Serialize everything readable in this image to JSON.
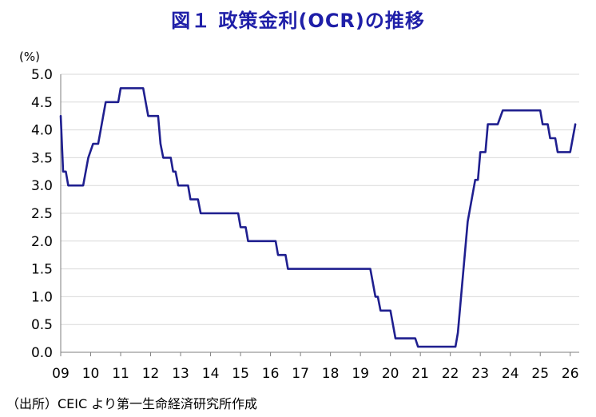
{
  "header": {
    "title": "図１ 政策金利(OCR)の推移"
  },
  "footer": {
    "source": "（出所）CEIC より第一生命経済研究所作成"
  },
  "chart_data": {
    "type": "line",
    "title": "図１ 政策金利(OCR)の推移",
    "xlabel": "",
    "ylabel": "(%)",
    "ylim": [
      0,
      5
    ],
    "xlim": [
      2009.0,
      2026.3
    ],
    "grid": true,
    "legend": "none",
    "y_ticks": [
      "0.0",
      "0.5",
      "1.0",
      "1.5",
      "2.0",
      "2.5",
      "3.0",
      "3.5",
      "4.0",
      "4.5",
      "5.0"
    ],
    "x_ticks": [
      {
        "x": 2009.0,
        "label": "09"
      },
      {
        "x": 2010.0,
        "label": "10"
      },
      {
        "x": 2011.0,
        "label": "11"
      },
      {
        "x": 2012.0,
        "label": "12"
      },
      {
        "x": 2013.0,
        "label": "13"
      },
      {
        "x": 2014.0,
        "label": "14"
      },
      {
        "x": 2015.0,
        "label": "15"
      },
      {
        "x": 2016.0,
        "label": "16"
      },
      {
        "x": 2017.0,
        "label": "17"
      },
      {
        "x": 2018.0,
        "label": "18"
      },
      {
        "x": 2019.0,
        "label": "19"
      },
      {
        "x": 2020.0,
        "label": "20"
      },
      {
        "x": 2021.0,
        "label": "21"
      },
      {
        "x": 2022.0,
        "label": "22"
      },
      {
        "x": 2023.0,
        "label": "23"
      },
      {
        "x": 2024.0,
        "label": "24"
      },
      {
        "x": 2025.0,
        "label": "25"
      },
      {
        "x": 2026.0,
        "label": "26"
      }
    ],
    "line_color": "#1f1f8f",
    "series": [
      {
        "x": [
          2009.0,
          2009.08,
          2009.17,
          2009.25,
          2009.33,
          2009.75,
          2009.92,
          2010.08,
          2010.25,
          2010.5,
          2010.75,
          2010.92,
          2011.0,
          2011.75,
          2011.92,
          2012.25,
          2012.33,
          2012.42,
          2012.67,
          2012.75,
          2012.83,
          2012.92,
          2013.25,
          2013.33,
          2013.58,
          2013.67,
          2014.67,
          2014.92,
          2015.0,
          2015.17,
          2015.25,
          2015.42,
          2016.17,
          2016.25,
          2016.5,
          2016.58,
          2019.25,
          2019.33,
          2019.5,
          2019.58,
          2019.67,
          2020.0,
          2020.17,
          2020.25,
          2020.83,
          2020.92,
          2022.17,
          2022.25,
          2022.58,
          2022.83,
          2022.92,
          2023.0,
          2023.17,
          2023.25,
          2023.33,
          2023.58,
          2023.75,
          2024.0,
          2025.0,
          2025.08,
          2025.25,
          2025.33,
          2025.5,
          2025.58,
          2026.0,
          2026.17
        ],
        "y": [
          4.25,
          3.25,
          3.25,
          3.0,
          3.0,
          3.0,
          3.5,
          3.75,
          3.75,
          4.5,
          4.5,
          4.5,
          4.75,
          4.75,
          4.25,
          4.25,
          3.75,
          3.5,
          3.5,
          3.25,
          3.25,
          3.0,
          3.0,
          2.75,
          2.75,
          2.5,
          2.5,
          2.5,
          2.25,
          2.25,
          2.0,
          2.0,
          2.0,
          1.75,
          1.75,
          1.5,
          1.5,
          1.5,
          1.0,
          1.0,
          0.75,
          0.75,
          0.25,
          0.25,
          0.25,
          0.1,
          0.1,
          0.35,
          2.35,
          3.1,
          3.1,
          3.6,
          3.6,
          4.1,
          4.1,
          4.1,
          4.35,
          4.35,
          4.35,
          4.1,
          4.1,
          3.85,
          3.85,
          3.6,
          3.6,
          4.1
        ]
      }
    ]
  }
}
